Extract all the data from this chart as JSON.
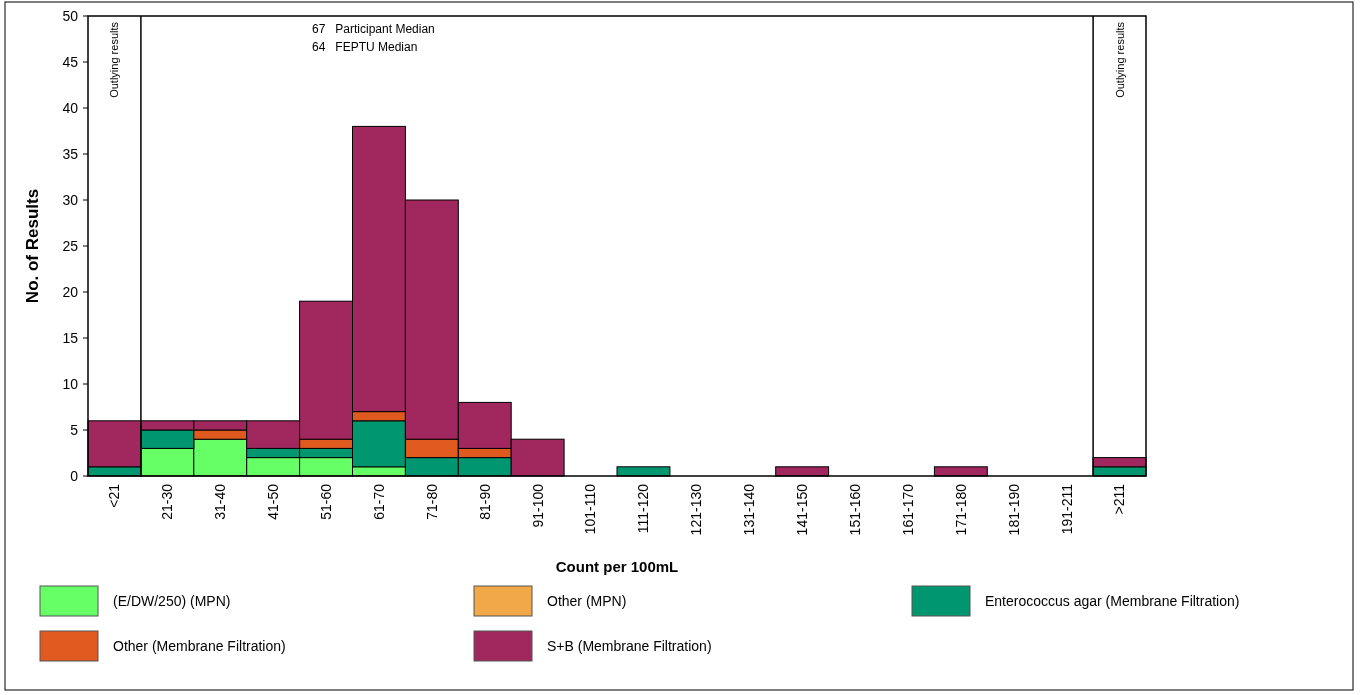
{
  "chart_data": {
    "type": "bar",
    "stacked": true,
    "xlabel": "Count per 100mL",
    "ylabel": "No. of Results",
    "categories": [
      "<21",
      "21-30",
      "31-40",
      "41-50",
      "51-60",
      "61-70",
      "71-80",
      "81-90",
      "91-100",
      "101-110",
      "111-120",
      "121-130",
      "131-140",
      "141-150",
      "151-160",
      "161-170",
      "171-180",
      "181-190",
      "191-211",
      ">211"
    ],
    "series": [
      {
        "name": "(E/DW/250) (MPN)",
        "color": "#66ff66",
        "values": [
          0,
          3,
          4,
          2,
          2,
          1,
          0,
          0,
          0,
          0,
          0,
          0,
          0,
          0,
          0,
          0,
          0,
          0,
          0,
          0
        ]
      },
      {
        "name": "Other (MPN)",
        "color": "#f0a848",
        "values": [
          0,
          0,
          0,
          0,
          0,
          0,
          0,
          0,
          0,
          0,
          0,
          0,
          0,
          0,
          0,
          0,
          0,
          0,
          0,
          0
        ]
      },
      {
        "name": "Enterococcus agar (Membrane Filtration)",
        "color": "#009670",
        "values": [
          1,
          2,
          0,
          1,
          1,
          5,
          2,
          2,
          0,
          0,
          1,
          0,
          0,
          0,
          0,
          0,
          0,
          0,
          0,
          1
        ]
      },
      {
        "name": "Other (Membrane Filtration)",
        "color": "#e05a20",
        "values": [
          0,
          0,
          1,
          0,
          1,
          1,
          2,
          1,
          0,
          0,
          0,
          0,
          0,
          0,
          0,
          0,
          0,
          0,
          0,
          0
        ]
      },
      {
        "name": "S+B (Membrane Filtration)",
        "color": "#a0285e",
        "values": [
          5,
          1,
          1,
          3,
          15,
          31,
          26,
          5,
          4,
          0,
          0,
          0,
          0,
          1,
          0,
          0,
          1,
          0,
          0,
          1
        ]
      }
    ],
    "ylim": [
      0,
      50
    ],
    "yticks": [
      0,
      5,
      10,
      15,
      20,
      25,
      30,
      35,
      40,
      45,
      50
    ],
    "grid": false,
    "legend": "bottom",
    "annotations": [
      "67   Participant Median",
      "64   FEPTU Median",
      "Outlying results",
      "Outlying results"
    ]
  }
}
